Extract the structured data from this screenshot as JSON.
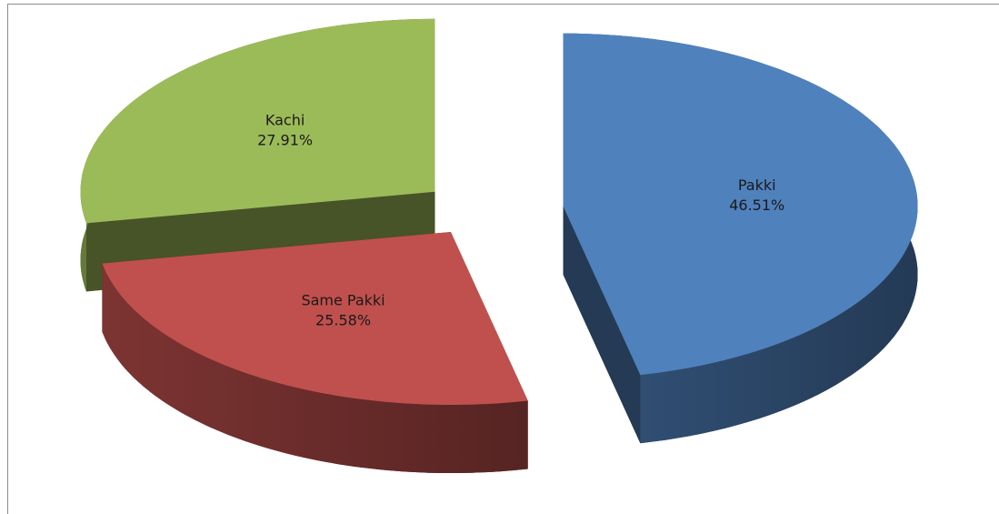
{
  "chart_data": {
    "type": "pie",
    "pie_style": "3d-exploded",
    "categories": [
      "Pakki",
      "Same Pakki",
      "Kachi"
    ],
    "values": [
      46.51,
      25.58,
      27.91
    ],
    "value_labels": [
      "46.51%",
      "25.58%",
      "27.91%"
    ],
    "colors": [
      "#4f81bd",
      "#c0504d",
      "#9bbb59"
    ]
  }
}
